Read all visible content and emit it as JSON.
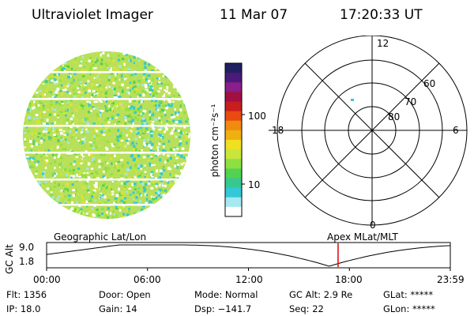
{
  "header": {
    "title": "Ultraviolet Imager",
    "date": "11 Mar 07",
    "time": "17:20:33 UT"
  },
  "colorbar": {
    "unit_label": "photon cm⁻²s⁻¹",
    "ticks": [
      "100",
      "10"
    ],
    "colors": [
      "#202060",
      "#4a1a7a",
      "#8a1e8a",
      "#a01040",
      "#c81e1e",
      "#e84a10",
      "#f08a10",
      "#f0b010",
      "#f0e020",
      "#c8e63c",
      "#8ee040",
      "#52d250",
      "#36c890",
      "#32c8d8",
      "#a6e8f0",
      "#ffffff"
    ]
  },
  "polar": {
    "mlt_labels": [
      "12",
      "18",
      "6",
      "0"
    ],
    "lat_labels": [
      "60",
      "70",
      "80"
    ]
  },
  "timeline": {
    "left_title": "Geographic Lat/Lon",
    "right_title": "Apex MLat/MLT",
    "axis_label": "GC Alt",
    "y_max": "9.0",
    "y_min": "1.8",
    "time_ticks": [
      "00:00",
      "06:00",
      "12:00",
      "18:00",
      "23:59"
    ],
    "marker_time": "17:20",
    "marker_fraction": 0.722
  },
  "info": {
    "flt": "Flt: 1356",
    "ip": "IP: 18.0",
    "door": "Door: Open",
    "gain": "Gain: 14",
    "mode": "Mode: Normal",
    "dsp": "Dsp: −141.7",
    "gcalt": "GC Alt: 2.9 Re",
    "seq": "Seq: 22",
    "glat": "GLat: *****",
    "glon": "GLon: *****"
  }
}
